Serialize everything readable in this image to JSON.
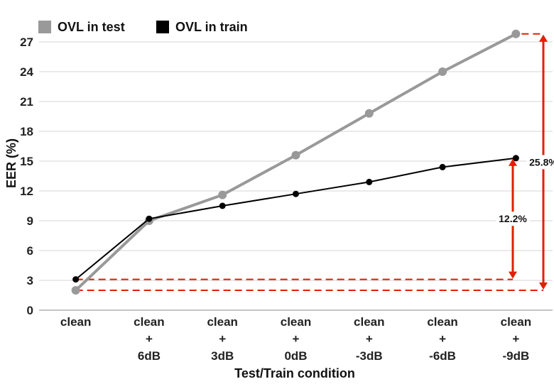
{
  "chart_data": {
    "type": "line",
    "xlabel": "Test/Train condition",
    "ylabel": "EER (%)",
    "ylim": [
      0,
      29
    ],
    "yticks": [
      0,
      3,
      6,
      9,
      12,
      15,
      18,
      21,
      24,
      27
    ],
    "categories": [
      [
        "clean"
      ],
      [
        "clean",
        "+",
        "6dB"
      ],
      [
        "clean",
        "+",
        "3dB"
      ],
      [
        "clean",
        "+",
        "0dB"
      ],
      [
        "clean",
        "+",
        "-3dB"
      ],
      [
        "clean",
        "+",
        "-6dB"
      ],
      [
        "clean",
        "+",
        "-9dB"
      ]
    ],
    "grid": "horizontal",
    "legend_position": "top-left",
    "series": [
      {
        "name": "OVL in test",
        "color": "#999999",
        "values": [
          2.0,
          9.0,
          11.6,
          15.6,
          19.8,
          24.0,
          27.8
        ]
      },
      {
        "name": "OVL in train",
        "color": "#000000",
        "values": [
          3.1,
          9.2,
          10.5,
          11.7,
          12.9,
          14.4,
          15.3
        ]
      }
    ],
    "annotations": [
      {
        "label": "12.2%",
        "color": "#e02000",
        "from": 3.1,
        "to": 15.3
      },
      {
        "label": "25.8%",
        "color": "#e02000",
        "from": 2.0,
        "to": 27.8
      }
    ]
  }
}
